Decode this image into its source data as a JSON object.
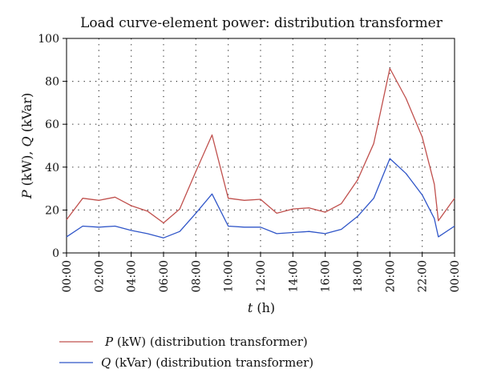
{
  "chart_data": {
    "type": "line",
    "title": "Load curve-element power: distribution transformer",
    "xlabel": "t (h)",
    "xlabel_var": "t",
    "xlabel_unit": "(h)",
    "ylabel": "P (kW), Q (kVar)",
    "ylabel_p": "P",
    "ylabel_rest1": "(kW),",
    "ylabel_q": "Q",
    "ylabel_rest2": "(kVar)",
    "ylim": [
      0,
      100
    ],
    "xlim": [
      0,
      24
    ],
    "grid": true,
    "legend_position": "bottom-left",
    "yticks": [
      0,
      20,
      40,
      60,
      80,
      100
    ],
    "xticks": [
      {
        "x": 0,
        "label": "00:00"
      },
      {
        "x": 2,
        "label": "02:00"
      },
      {
        "x": 4,
        "label": "04:00"
      },
      {
        "x": 6,
        "label": "06:00"
      },
      {
        "x": 8,
        "label": "08:00"
      },
      {
        "x": 10,
        "label": "10:00"
      },
      {
        "x": 12,
        "label": "12:00"
      },
      {
        "x": 14,
        "label": "14:00"
      },
      {
        "x": 16,
        "label": "16:00"
      },
      {
        "x": 18,
        "label": "18:00"
      },
      {
        "x": 20,
        "label": "20:00"
      },
      {
        "x": 22,
        "label": "22:00"
      },
      {
        "x": 24,
        "label": "00:00"
      }
    ],
    "x": [
      0,
      1,
      2,
      3,
      4,
      5,
      6,
      7,
      8,
      9,
      10,
      11,
      12,
      13,
      14,
      15,
      16,
      17,
      18,
      19,
      20,
      21,
      22,
      22.75,
      23,
      24
    ],
    "series": [
      {
        "name": "P (kW) (distribution transformer)",
        "name_var": "P",
        "name_rest": "(kW) (distribution transformer)",
        "color": "#c0504d",
        "values": [
          15.5,
          25.5,
          24.5,
          26,
          22,
          19.5,
          14,
          20.5,
          38,
          55,
          25.5,
          24.5,
          25,
          18.5,
          20.5,
          21,
          19,
          23,
          34,
          51,
          86,
          72,
          54,
          32,
          15,
          25.5
        ]
      },
      {
        "name": "Q (kVar) (distribution transformer)",
        "name_var": "Q",
        "name_rest": "(kVar) (distribution transformer)",
        "color": "#2f55c8",
        "values": [
          7.5,
          12.5,
          12,
          12.5,
          10.5,
          9,
          7,
          10,
          18.5,
          27.5,
          12.5,
          12,
          12,
          9,
          9.5,
          10,
          9,
          11,
          17,
          25.5,
          44,
          37,
          27,
          16,
          7.5,
          12.5
        ]
      }
    ]
  }
}
